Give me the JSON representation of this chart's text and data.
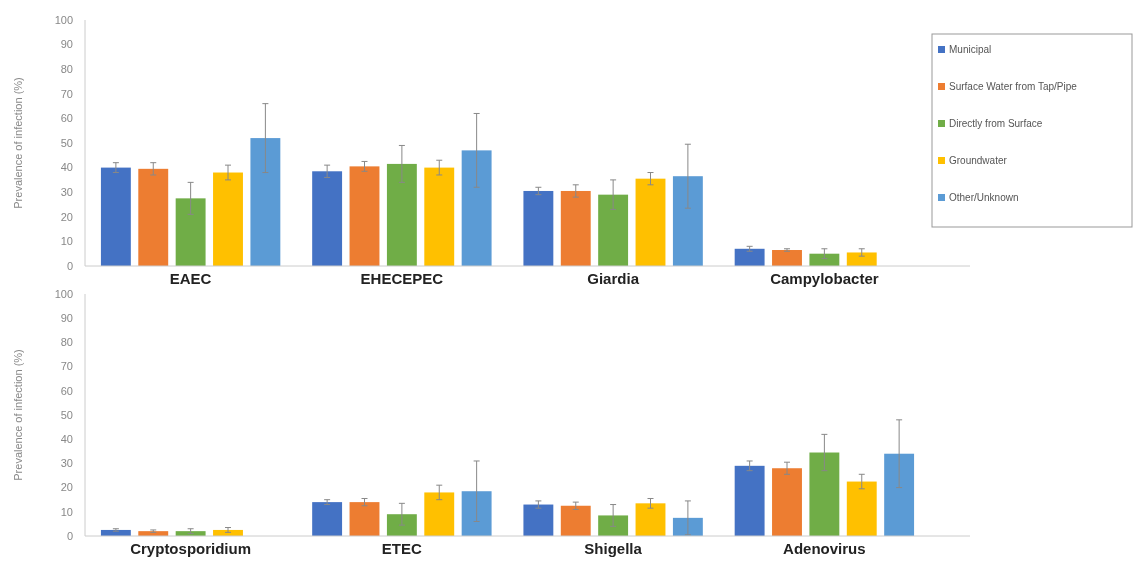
{
  "chart_data": [
    {
      "type": "bar",
      "ylabel": "Prevalence of infection (%)",
      "categories": [
        "EAEC",
        "EHECEPEC",
        "Giardia",
        "Campylobacter"
      ],
      "ylim": [
        0,
        100
      ],
      "yticks": [
        0,
        10,
        20,
        30,
        40,
        50,
        60,
        70,
        80,
        90,
        100
      ],
      "grid": false,
      "legend": "right",
      "series": [
        {
          "name": "Municipal",
          "color": "#4472c4",
          "values": [
            40,
            38.5,
            30.5,
            7
          ],
          "errors": [
            2,
            2.5,
            1.5,
            1
          ]
        },
        {
          "name": "Surface Water from Tap/Pipe",
          "color": "#ed7d31",
          "values": [
            39.5,
            40.5,
            30.5,
            6.5
          ],
          "errors": [
            2.5,
            2,
            2.5,
            0.5
          ]
        },
        {
          "name": "Directly from Surface",
          "color": "#70ad47",
          "values": [
            27.5,
            41.5,
            29,
            5
          ],
          "errors": [
            6.5,
            7.5,
            6,
            2
          ]
        },
        {
          "name": "Groundwater",
          "color": "#ffc000",
          "values": [
            38,
            40,
            35.5,
            5.5
          ],
          "errors": [
            3,
            3,
            2.5,
            1.5
          ]
        },
        {
          "name": "Other/Unknown",
          "color": "#5b9bd5",
          "values": [
            52,
            47,
            36.5,
            null
          ],
          "errors": [
            14,
            15,
            13,
            null
          ]
        }
      ]
    },
    {
      "type": "bar",
      "ylabel": "Prevalence of infection (%)",
      "categories": [
        "Cryptosporidium",
        "ETEC",
        "Shigella",
        "Adenovirus"
      ],
      "ylim": [
        0,
        100
      ],
      "yticks": [
        0,
        10,
        20,
        30,
        40,
        50,
        60,
        70,
        80,
        90,
        100
      ],
      "grid": false,
      "series": [
        {
          "color": "#4472c4",
          "values": [
            2.5,
            14,
            13,
            29
          ],
          "errors": [
            0.5,
            1,
            1.5,
            2
          ]
        },
        {
          "color": "#ed7d31",
          "values": [
            2,
            14,
            12.5,
            28
          ],
          "errors": [
            0.5,
            1.5,
            1.5,
            2.5
          ]
        },
        {
          "color": "#70ad47",
          "values": [
            2,
            9,
            8.5,
            34.5
          ],
          "errors": [
            1,
            4.5,
            4.5,
            7.5
          ]
        },
        {
          "color": "#ffc000",
          "values": [
            2.5,
            18,
            13.5,
            22.5
          ],
          "errors": [
            1,
            3,
            2,
            3
          ]
        },
        {
          "color": "#5b9bd5",
          "values": [
            null,
            18.5,
            7.5,
            34
          ],
          "errors": [
            null,
            12.5,
            7,
            14
          ]
        }
      ]
    }
  ]
}
